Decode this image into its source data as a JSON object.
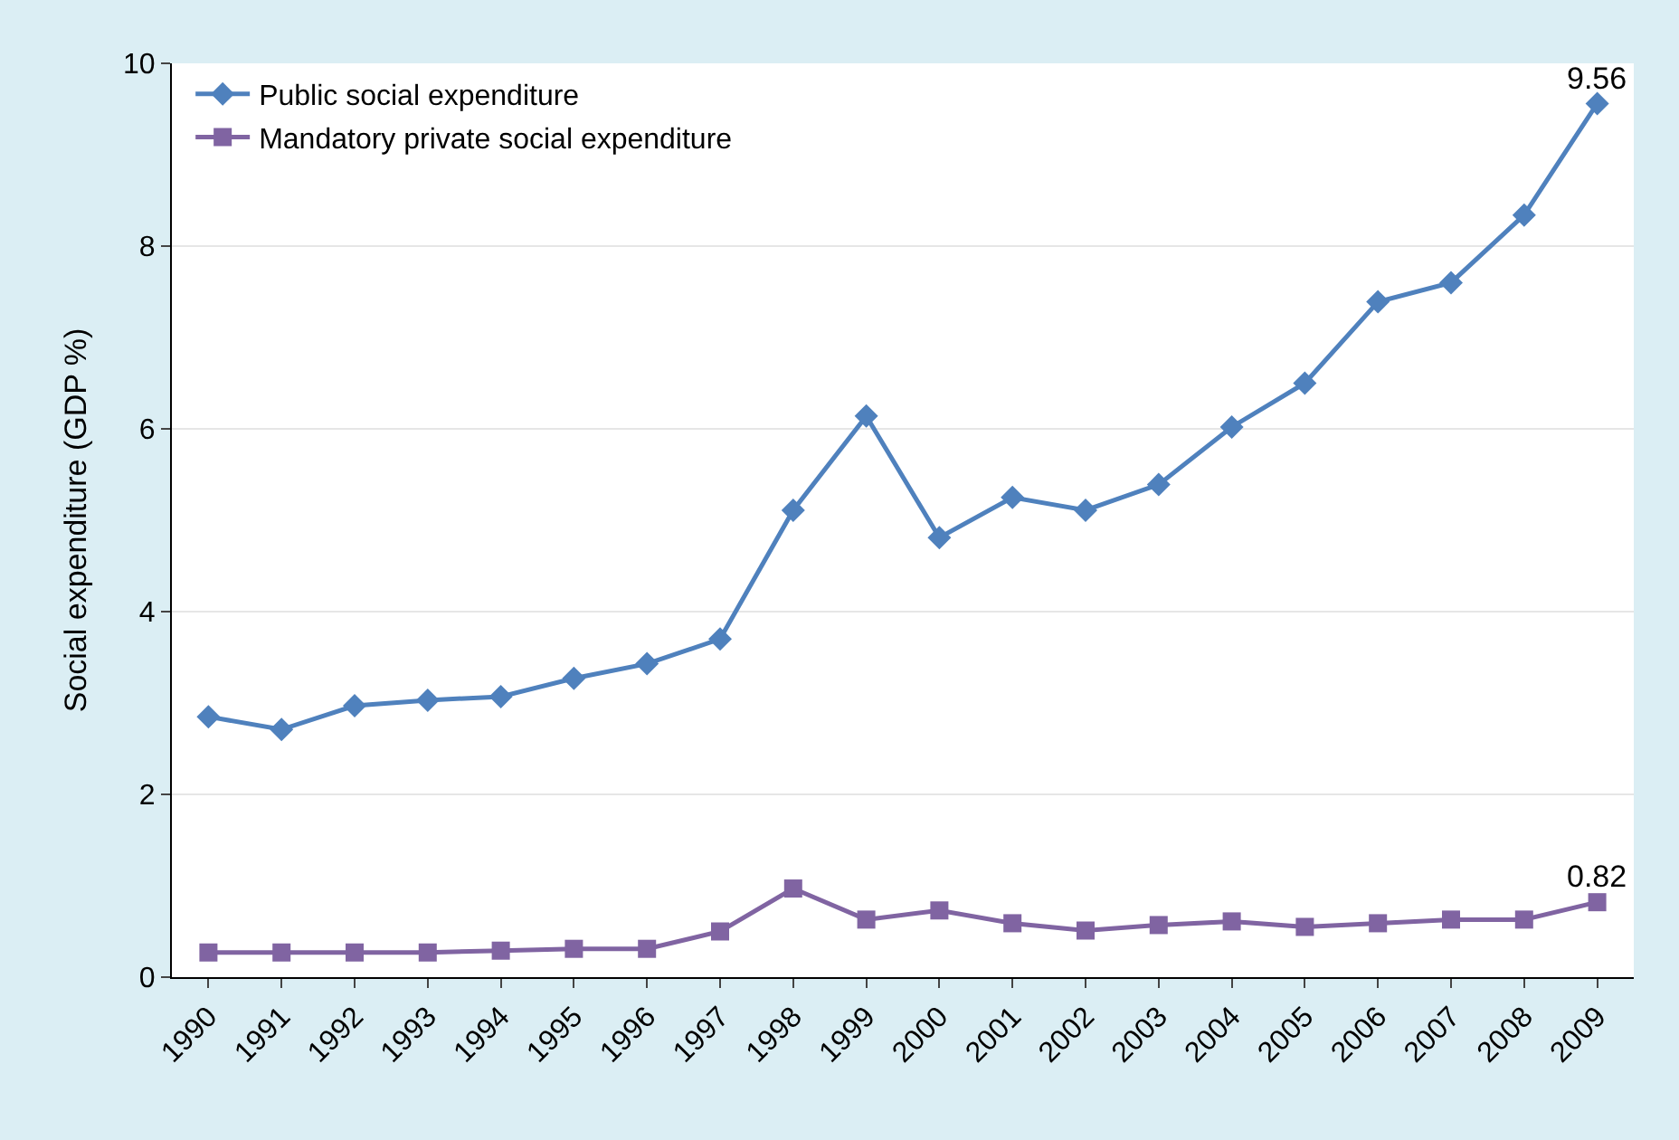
{
  "chart_data": {
    "type": "line",
    "ylabel": "Social expenditure (GDP %)",
    "categories": [
      "1990",
      "1991",
      "1992",
      "1993",
      "1994",
      "1995",
      "1996",
      "1997",
      "1998",
      "1999",
      "2000",
      "2001",
      "2002",
      "2003",
      "2004",
      "2005",
      "2006",
      "2007",
      "2008",
      "2009"
    ],
    "series": [
      {
        "name": "Public social expenditure",
        "color": "#4f81bd",
        "marker": "diamond",
        "values": [
          2.85,
          2.71,
          2.97,
          3.03,
          3.07,
          3.27,
          3.43,
          3.7,
          5.11,
          6.14,
          4.81,
          5.25,
          5.11,
          5.39,
          6.02,
          6.5,
          7.39,
          7.6,
          8.34,
          9.56
        ]
      },
      {
        "name": "Mandatory private social expenditure",
        "color": "#8064a2",
        "marker": "square",
        "values": [
          0.27,
          0.27,
          0.27,
          0.27,
          0.29,
          0.31,
          0.31,
          0.5,
          0.97,
          0.63,
          0.73,
          0.59,
          0.51,
          0.57,
          0.61,
          0.55,
          0.59,
          0.63,
          0.63,
          0.82
        ]
      }
    ],
    "annotations": [
      {
        "text": "9.56",
        "x": "2009",
        "y": 9.56
      },
      {
        "text": "0.82",
        "x": "2009",
        "y": 0.82
      }
    ],
    "ylim": [
      0,
      10
    ],
    "yticks": [
      0,
      2,
      4,
      6,
      8,
      10
    ],
    "grid": "y",
    "legend": "top left",
    "line_style": "solid"
  }
}
